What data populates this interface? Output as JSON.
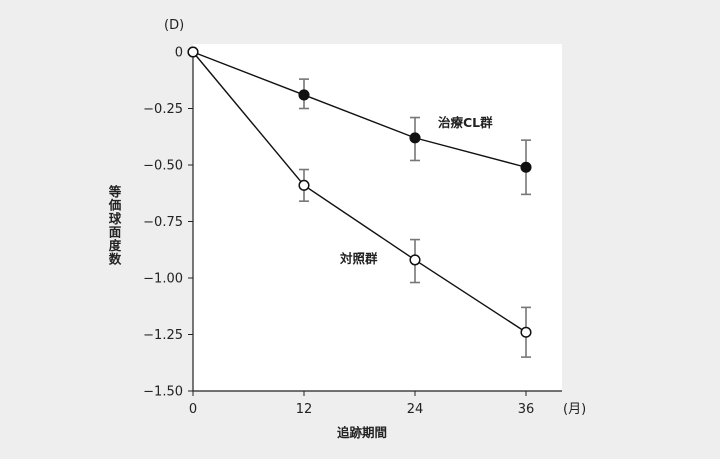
{
  "chart_data": {
    "type": "line",
    "x": [
      0,
      12,
      24,
      36
    ],
    "xlabel": "追跡期間",
    "x_unit": "(月)",
    "ylabel": "等価球面度数",
    "y_unit": "(D)",
    "ylim": [
      -1.5,
      0
    ],
    "xlim": [
      0,
      36
    ],
    "y_ticks": [
      "0",
      "-0.25",
      "-0.50",
      "-0.75",
      "-1.00",
      "-1.25",
      "-1.50"
    ],
    "x_ticks": [
      "0",
      "12",
      "24",
      "36"
    ],
    "grid": false,
    "series": [
      {
        "name": "治療CL群",
        "marker": "filled-circle",
        "values": [
          0,
          -0.19,
          -0.38,
          -0.51
        ],
        "error_low": [
          0,
          -0.25,
          -0.48,
          -0.63
        ],
        "error_high": [
          0,
          -0.12,
          -0.29,
          -0.39
        ]
      },
      {
        "name": "対照群",
        "marker": "open-circle",
        "values": [
          0,
          -0.59,
          -0.92,
          -1.24
        ],
        "error_low": [
          0,
          -0.66,
          -1.02,
          -1.35
        ],
        "error_high": [
          0,
          -0.52,
          -0.83,
          -1.13
        ]
      }
    ]
  },
  "colors": {
    "background": "#eeeeee",
    "plot_area": "#ffffff",
    "line": "#111111",
    "error_bar": "#777777"
  }
}
